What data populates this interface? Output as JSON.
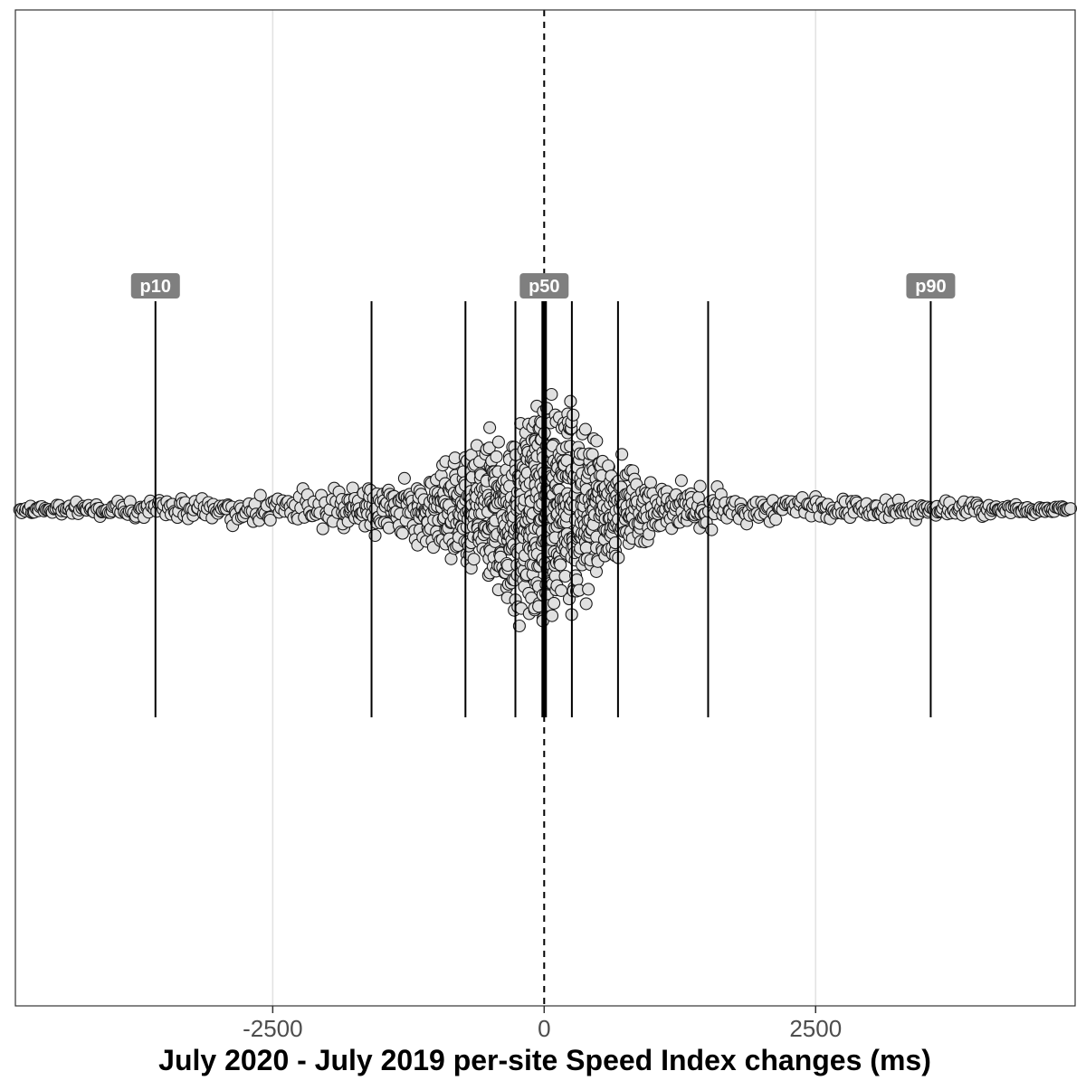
{
  "chart_data": {
    "type": "scatter",
    "subtype": "beeswarm",
    "title": "",
    "xlabel": "July 2020 - July 2019 per-site Speed Index changes (ms)",
    "ylabel": "",
    "xlim": [
      -4870,
      4890
    ],
    "x_ticks": [
      -2500,
      0,
      2500
    ],
    "x_tick_labels": [
      "-2500",
      "0",
      "2500"
    ],
    "grid": "vertical major only",
    "zero_line": {
      "x": 0,
      "style": "dashed"
    },
    "percentile_lines": [
      {
        "x": -3580,
        "label": "p10"
      },
      {
        "x": -1590,
        "label": ""
      },
      {
        "x": -725,
        "label": ""
      },
      {
        "x": -265,
        "label": ""
      },
      {
        "x": 0,
        "label": "p50",
        "emphasis": true
      },
      {
        "x": 255,
        "label": ""
      },
      {
        "x": 680,
        "label": ""
      },
      {
        "x": 1510,
        "label": ""
      },
      {
        "x": 3560,
        "label": "p90"
      }
    ],
    "density_profile": {
      "x": [
        -4870,
        -4000,
        -3580,
        -2500,
        -2000,
        -1590,
        -1300,
        -1000,
        -725,
        -500,
        -265,
        -100,
        0,
        100,
        255,
        500,
        680,
        1000,
        1510,
        2000,
        2500,
        3000,
        3560,
        4000,
        4890
      ],
      "relative_density": [
        0.04,
        0.07,
        0.09,
        0.12,
        0.16,
        0.18,
        0.22,
        0.36,
        0.52,
        0.62,
        0.82,
        0.96,
        1.0,
        0.96,
        0.8,
        0.62,
        0.5,
        0.26,
        0.16,
        0.13,
        0.1,
        0.08,
        0.07,
        0.06,
        0.04
      ]
    },
    "marker": {
      "fill": "#e0e0e0",
      "stroke": "#1a1a1a"
    },
    "label_box_color": "#7f7f7f",
    "label_text_color": "#ffffff"
  }
}
